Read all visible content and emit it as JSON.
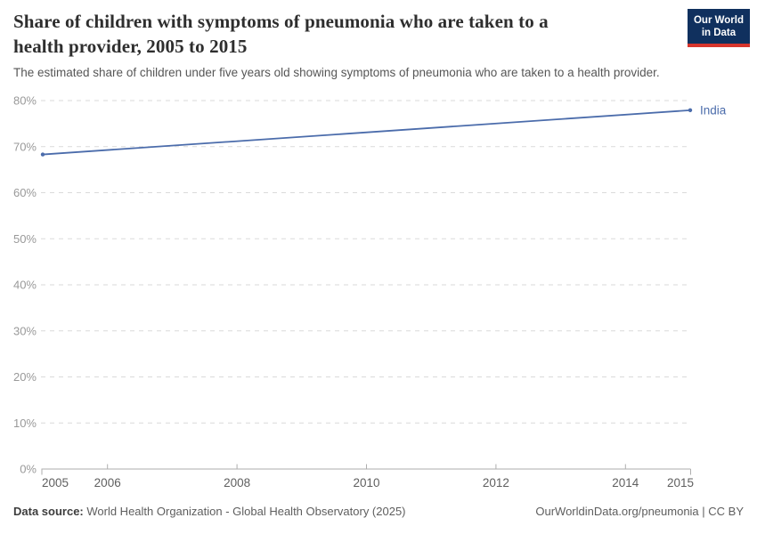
{
  "header": {
    "title_line1": "Share of children with symptoms of pneumonia who are taken to a",
    "title_line2": "health provider, 2005 to 2015",
    "subtitle": "The estimated share of children under five years old showing symptoms of pneumonia who are taken to a health provider.",
    "logo": {
      "line1": "Our World",
      "line2": "in Data",
      "bg_color": "#10305e",
      "accent_color": "#d7352c"
    }
  },
  "chart_data": {
    "type": "line",
    "title": "Share of children with symptoms of pneumonia who are taken to a health provider, 2005 to 2015",
    "subtitle": "The estimated share of children under five years old showing symptoms of pneumonia who are taken to a health provider.",
    "series": [
      {
        "name": "India",
        "color": "#4b6cab",
        "x": [
          2005,
          2015
        ],
        "values": [
          68.3,
          77.9
        ]
      }
    ],
    "x_ticks": [
      2005,
      2006,
      2008,
      2010,
      2012,
      2014,
      2015
    ],
    "y_ticks": [
      0,
      10,
      20,
      30,
      40,
      50,
      60,
      70,
      80
    ],
    "y_suffix": "%",
    "xlim": [
      2005,
      2015
    ],
    "ylim": [
      0,
      80
    ],
    "grid": "horizontal dashed",
    "legend": "line-end label"
  },
  "colors": {
    "line": "#4b6cab",
    "grid": "#dadada",
    "axis": "#aeaeae",
    "y_tick_label": "#999999",
    "x_tick_label": "#5f5f5f",
    "title": "#2e2e2e",
    "subtitle": "#565656"
  },
  "footer": {
    "source_label": "Data source:",
    "source_value": " World Health Organization - Global Health Observatory (2025)",
    "link": "OurWorldinData.org/pneumonia | CC BY"
  }
}
